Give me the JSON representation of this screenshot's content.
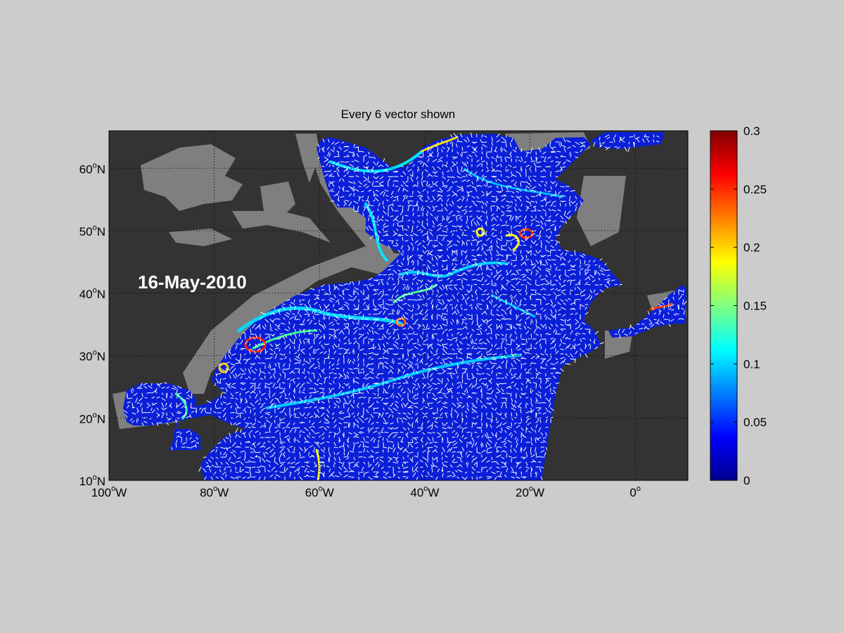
{
  "figure": {
    "title": "Every 6 vector shown",
    "date_label": "16-May-2010"
  },
  "map": {
    "lon_range": [
      -100,
      10
    ],
    "lat_range": [
      10,
      66
    ],
    "lat_ticks": [
      {
        "value": 10,
        "num": "10",
        "hemi": "N"
      },
      {
        "value": 20,
        "num": "20",
        "hemi": "N"
      },
      {
        "value": 30,
        "num": "30",
        "hemi": "N"
      },
      {
        "value": 40,
        "num": "40",
        "hemi": "N"
      },
      {
        "value": 50,
        "num": "50",
        "hemi": "N"
      },
      {
        "value": 60,
        "num": "60",
        "hemi": "N"
      }
    ],
    "lon_ticks": [
      {
        "value": -100,
        "num": "100",
        "hemi": "W"
      },
      {
        "value": -80,
        "num": "80",
        "hemi": "W"
      },
      {
        "value": -60,
        "num": "60",
        "hemi": "W"
      },
      {
        "value": -40,
        "num": "40",
        "hemi": "W"
      },
      {
        "value": -20,
        "num": "20",
        "hemi": "W"
      },
      {
        "value": 0,
        "num": "0",
        "hemi": ""
      }
    ],
    "colors": {
      "land": "#333333",
      "shelf": "#7f7f7f",
      "ocean": "#0a1fd8",
      "vectors": "#ffffff",
      "grid": "#000000"
    }
  },
  "colorbar": {
    "colormap": "jet",
    "ticks": [
      "0",
      "0.05",
      "0.1",
      "0.15",
      "0.2",
      "0.25",
      "0.3"
    ],
    "range": [
      0,
      0.3
    ]
  }
}
